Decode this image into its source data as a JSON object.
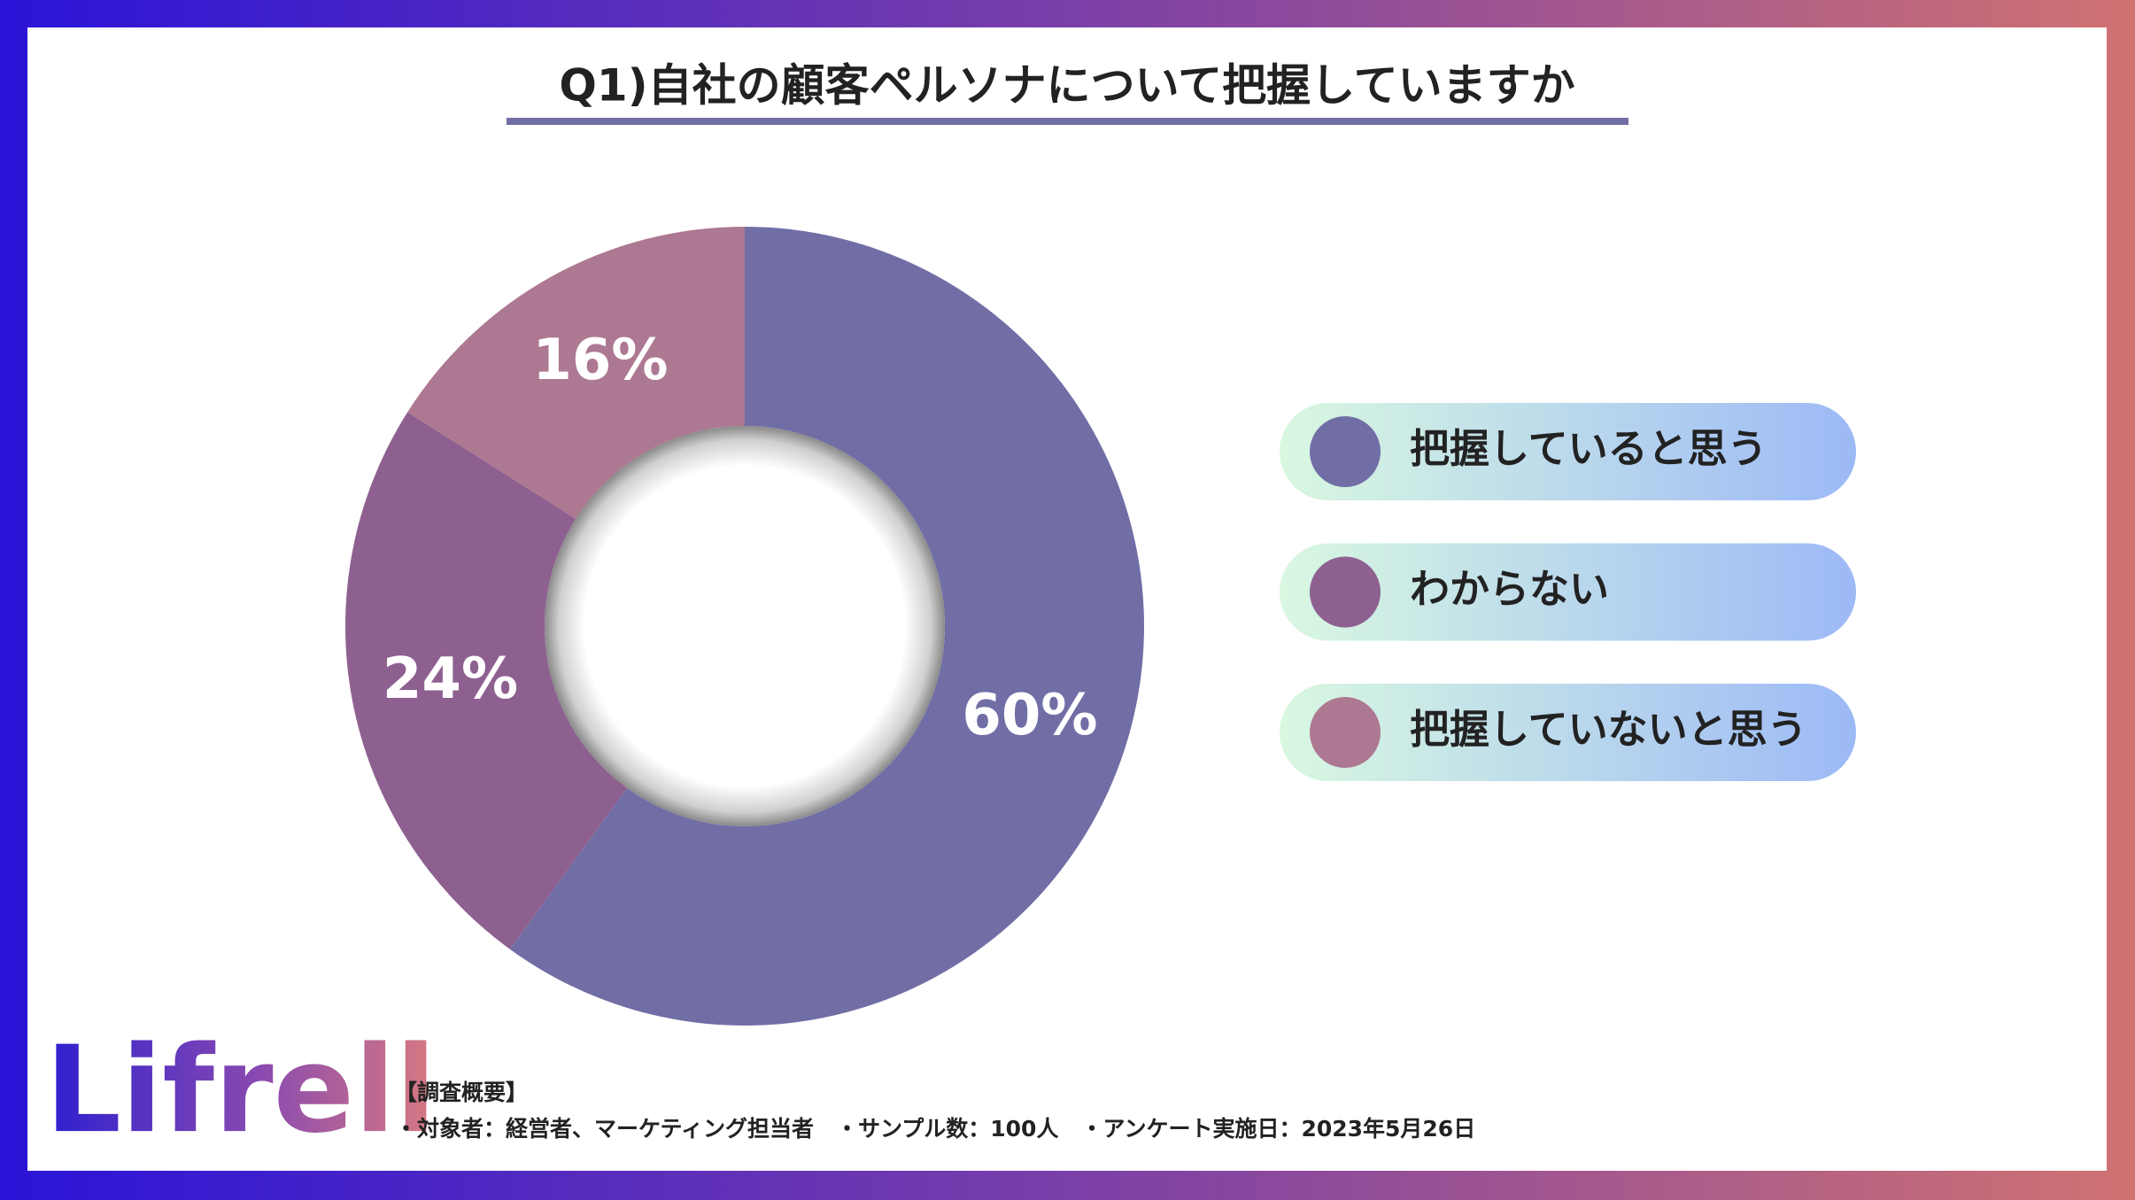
{
  "chart_data": {
    "type": "donut",
    "title": "Q1)自社の顧客ペルソナについて把握していますか",
    "categories": [
      "把握していると思う",
      "わからない",
      "把握していないと思う"
    ],
    "values": [
      60,
      24,
      16
    ],
    "value_labels": [
      "60%",
      "24%",
      "16%"
    ],
    "colors": [
      "#716ea6",
      "#8e6090",
      "#ad7891"
    ],
    "notes": [
      "【調査概要】",
      "・対象者：経営者、マーケティング担当者　・サンプル数：100人　・アンケート実施日：2023年5月26日"
    ]
  },
  "logo": "Lifrell"
}
